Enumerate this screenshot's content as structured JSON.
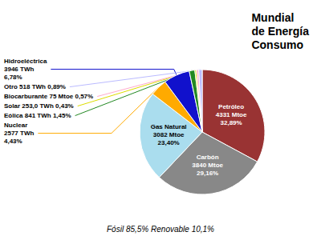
{
  "chart_data": {
    "type": "pie",
    "title": "Mundial\nde Energía\nConsumo",
    "annotations": [
      "Fósil 85,5% Renovable 10,1%"
    ],
    "categories": [
      "Petróleo\n4331 Mtoe\n32,89%",
      "Carbón\n3840 Mtoe\n29,16%",
      "Gas Natural\n3082 Mtoe\n23,40%",
      "Nuclear\n2577 TWh\n4,43%",
      "Hidroeléctrica\n3946 TWh\n6,78%",
      "Eólica 841 TWh 1,45%",
      "Solar 253,0 TWh 0,43%",
      "Biocarburante 75 Mtoe 0,57%",
      "Otro 518 TWh 0,89%"
    ],
    "values": [
      32.89,
      29.16,
      23.4,
      4.43,
      6.78,
      1.45,
      0.43,
      0.57,
      0.89
    ],
    "colors": [
      "#993333",
      "#888888",
      "#aaddee",
      "#ffaa00",
      "#1111cc",
      "#228822",
      "#dddd00",
      "#ffaacc",
      "#bbbbff"
    ]
  }
}
